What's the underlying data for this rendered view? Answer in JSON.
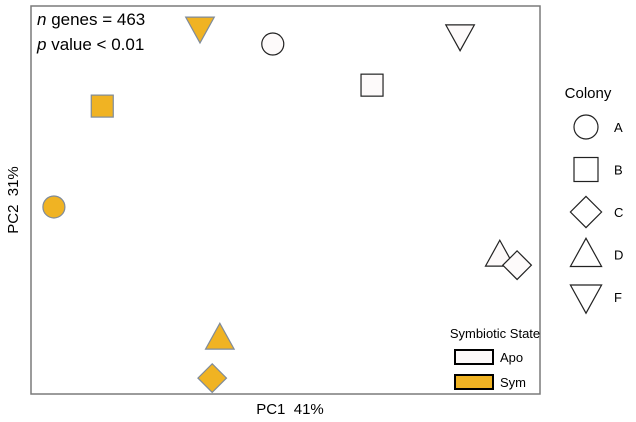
{
  "chart_data": {
    "type": "scatter",
    "xlabel": "PC1  41%",
    "ylabel": "PC2  31%",
    "xlim": [
      0,
      100
    ],
    "ylim": [
      0,
      100
    ],
    "grid": false,
    "annotations": {
      "n_prefix": "n",
      "n_text": " genes = 463",
      "p_prefix": "p",
      "p_text": " value < 0.01"
    },
    "colors": {
      "Apo": "#FDFAFA",
      "Sym": "#F0B323",
      "apo_stroke": "#222222",
      "sym_stroke": "#7F8B9A"
    },
    "points": [
      {
        "colony": "F",
        "state": "Sym",
        "x": 33.2,
        "y": 94.3
      },
      {
        "colony": "A",
        "state": "Apo",
        "x": 47.5,
        "y": 90.2
      },
      {
        "colony": "F",
        "state": "Apo",
        "x": 84.3,
        "y": 92.3
      },
      {
        "colony": "B",
        "state": "Apo",
        "x": 67.0,
        "y": 79.6
      },
      {
        "colony": "B",
        "state": "Sym",
        "x": 14.0,
        "y": 74.2
      },
      {
        "colony": "A",
        "state": "Sym",
        "x": 4.5,
        "y": 48.2
      },
      {
        "colony": "D",
        "state": "Apo",
        "x": 92.1,
        "y": 35.8
      },
      {
        "colony": "C",
        "state": "Apo",
        "x": 95.5,
        "y": 33.2
      },
      {
        "colony": "D",
        "state": "Sym",
        "x": 37.1,
        "y": 14.4
      },
      {
        "colony": "C",
        "state": "Sym",
        "x": 35.6,
        "y": 4.1
      }
    ],
    "legend_colony": {
      "title": "Colony",
      "placement": "right",
      "entries": [
        {
          "label": "A",
          "shape": "circle"
        },
        {
          "label": "B",
          "shape": "square"
        },
        {
          "label": "C",
          "shape": "diamond"
        },
        {
          "label": "D",
          "shape": "triangle-up"
        },
        {
          "label": "F",
          "shape": "triangle-down"
        }
      ]
    },
    "legend_state": {
      "title": "Symbiotic State",
      "placement": "bottom-right",
      "entries": [
        "Apo",
        "Sym"
      ]
    }
  }
}
